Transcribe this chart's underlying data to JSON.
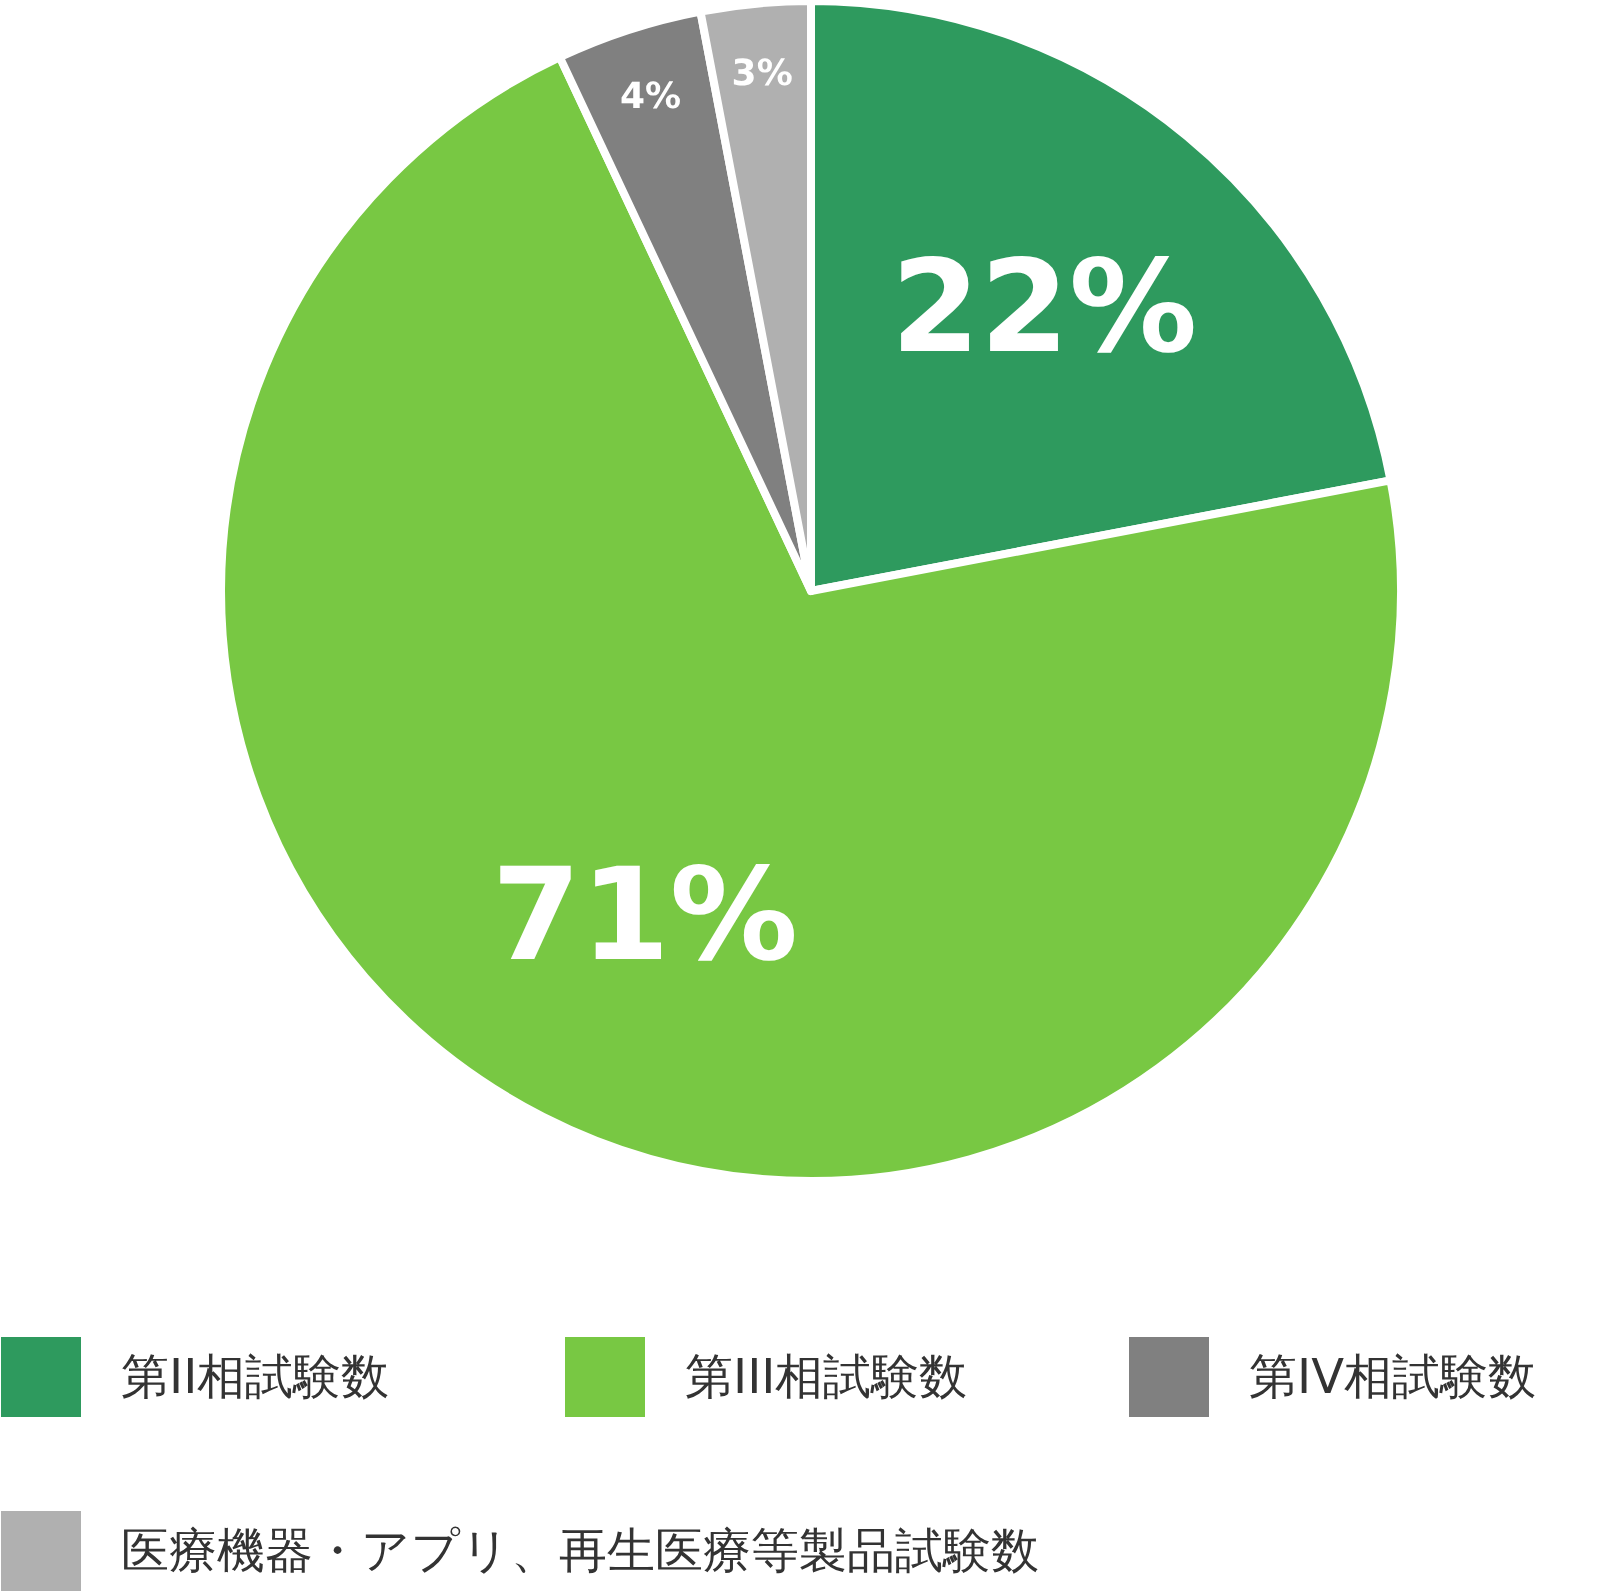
{
  "chart_data": {
    "type": "pie",
    "categories": [
      "第II相試験数",
      "第III相試験数",
      "第IV相試験数",
      "医療機器・アプリ、再生医療等製品試験数"
    ],
    "values": [
      22,
      71,
      4,
      3
    ],
    "colors": [
      "#2e9a5e",
      "#78c843",
      "#808080",
      "#b0b0b0"
    ],
    "value_labels": [
      "22%",
      "71%",
      "4%",
      "3%"
    ],
    "legend": "bottom"
  }
}
